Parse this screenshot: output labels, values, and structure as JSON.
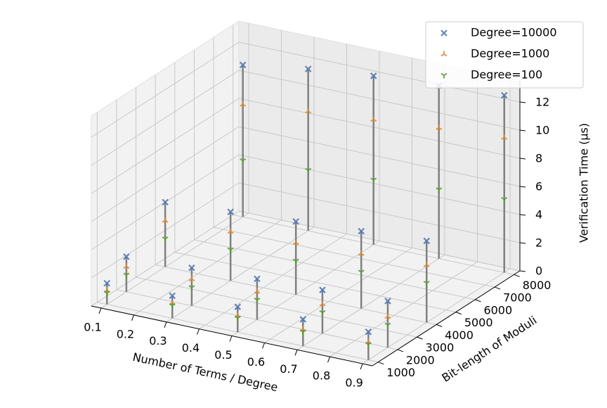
{
  "chart_data": {
    "type": "scatter3d",
    "x": [
      0.1,
      0.3,
      0.5,
      0.7,
      0.9,
      0.1,
      0.3,
      0.5,
      0.7,
      0.9,
      0.1,
      0.3,
      0.5,
      0.7,
      0.9,
      0.1,
      0.3,
      0.5,
      0.7,
      0.9
    ],
    "y": [
      1000,
      1000,
      1000,
      1000,
      1000,
      2000,
      2000,
      2000,
      2000,
      2000,
      4000,
      4000,
      4000,
      4000,
      4000,
      8000,
      8000,
      8000,
      8000,
      8000
    ],
    "series": [
      {
        "name": "Degree=10000",
        "color": "#4c72b0",
        "marker": "x",
        "values": [
          1.5,
          1.6,
          1.8,
          1.9,
          2.0,
          2.5,
          2.7,
          2.9,
          3.1,
          3.3,
          4.6,
          4.9,
          5.2,
          5.5,
          5.8,
          10.8,
          11.5,
          12.0,
          12.3,
          12.6
        ]
      },
      {
        "name": "Degree=1000",
        "color": "#e0892c",
        "marker": "tri_up",
        "values": [
          1.0,
          1.1,
          1.2,
          1.2,
          1.3,
          1.8,
          1.9,
          2.0,
          2.1,
          2.2,
          3.3,
          3.5,
          3.7,
          3.9,
          4.1,
          8.0,
          8.5,
          8.9,
          9.3,
          9.6
        ]
      },
      {
        "name": "Degree=100",
        "color": "#55a02c",
        "marker": "tri_down",
        "values": [
          0.8,
          0.9,
          1.0,
          1.0,
          1.1,
          1.2,
          1.3,
          1.4,
          1.5,
          1.6,
          2.0,
          2.2,
          2.4,
          2.6,
          2.8,
          4.0,
          4.3,
          4.6,
          4.9,
          5.2
        ]
      }
    ],
    "xlabel": "Number of Terms / Degree",
    "ylabel": "Bit-length of Moduli",
    "zlabel": "Verification Time (μs)",
    "xlim": [
      0.07,
      0.93
    ],
    "ylim": [
      700,
      8300
    ],
    "zlim": [
      0,
      13.5
    ],
    "xticks": [
      0.1,
      0.2,
      0.3,
      0.4,
      0.5,
      0.6,
      0.7,
      0.8,
      0.9
    ],
    "yticks": [
      1000,
      2000,
      3000,
      4000,
      5000,
      6000,
      7000,
      8000
    ],
    "zticks": [
      0,
      2,
      4,
      6,
      8,
      10,
      12
    ],
    "grid": true,
    "stems": true,
    "legend": "upper right"
  }
}
